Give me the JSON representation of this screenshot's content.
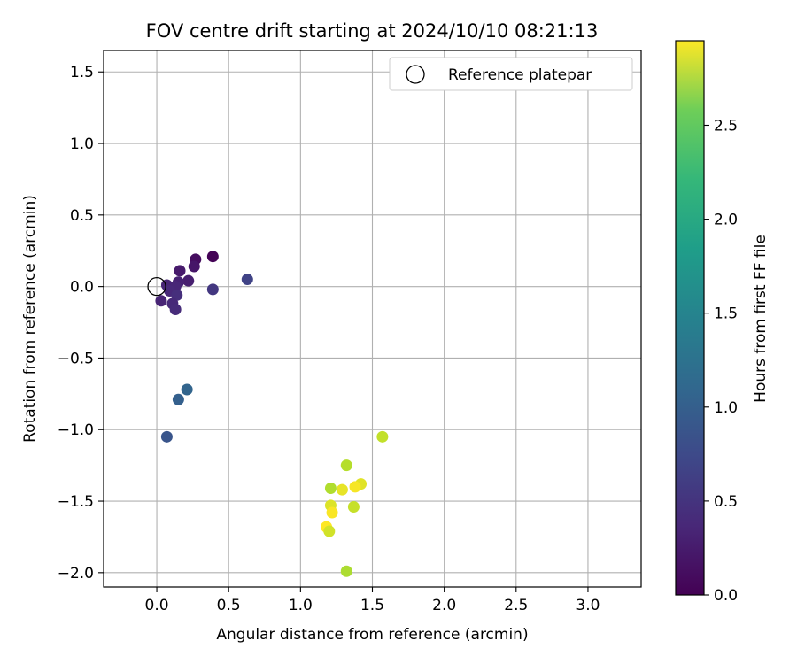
{
  "chart_data": {
    "type": "scatter",
    "title": "FOV centre drift starting at 2024/10/10 08:21:13",
    "xlabel": "Angular distance from reference (arcmin)",
    "ylabel": "Rotation from reference (arcmin)",
    "xlim": [
      -0.37,
      3.37
    ],
    "ylim": [
      -2.1,
      1.65
    ],
    "xticks": [
      0.0,
      0.5,
      1.0,
      1.5,
      2.0,
      2.5,
      3.0
    ],
    "xtick_labels": [
      "0.0",
      "0.5",
      "1.0",
      "1.5",
      "2.0",
      "2.5",
      "3.0"
    ],
    "yticks": [
      1.5,
      1.0,
      0.5,
      0.0,
      -0.5,
      -1.0,
      -1.5,
      -2.0
    ],
    "ytick_labels": [
      "1.5",
      "1.0",
      "0.5",
      "0.0",
      "−0.5",
      "−1.0",
      "−1.5",
      "−2.0"
    ],
    "grid": true,
    "legend": {
      "position": "top-right",
      "entries": [
        "Reference platepar"
      ]
    },
    "reference_point": {
      "x": 0.0,
      "y": 0.0
    },
    "colorbar": {
      "label": "Hours from first FF file",
      "colormap": "viridis",
      "range": [
        0.0,
        2.95
      ],
      "ticks": [
        0.0,
        0.5,
        1.0,
        1.5,
        2.0,
        2.5
      ],
      "tick_labels": [
        "0.0",
        "0.5",
        "1.0",
        "1.5",
        "2.0",
        "2.5"
      ]
    },
    "points": [
      {
        "x": 0.39,
        "y": 0.21,
        "t": 0.02
      },
      {
        "x": 0.27,
        "y": 0.19,
        "t": 0.1
      },
      {
        "x": 0.26,
        "y": 0.14,
        "t": 0.18
      },
      {
        "x": 0.16,
        "y": 0.11,
        "t": 0.22
      },
      {
        "x": 0.22,
        "y": 0.04,
        "t": 0.25
      },
      {
        "x": 0.15,
        "y": 0.03,
        "t": 0.28
      },
      {
        "x": 0.07,
        "y": 0.01,
        "t": 0.3
      },
      {
        "x": 0.13,
        "y": 0.0,
        "t": 0.32
      },
      {
        "x": 0.09,
        "y": -0.03,
        "t": 0.34
      },
      {
        "x": 0.14,
        "y": -0.06,
        "t": 0.4
      },
      {
        "x": 0.03,
        "y": -0.1,
        "t": 0.3
      },
      {
        "x": 0.11,
        "y": -0.12,
        "t": 0.35
      },
      {
        "x": 0.13,
        "y": -0.16,
        "t": 0.37
      },
      {
        "x": 0.39,
        "y": -0.02,
        "t": 0.48
      },
      {
        "x": 0.63,
        "y": 0.05,
        "t": 0.6
      },
      {
        "x": 0.21,
        "y": -0.72,
        "t": 0.95
      },
      {
        "x": 0.15,
        "y": -0.79,
        "t": 0.9
      },
      {
        "x": 0.07,
        "y": -1.05,
        "t": 0.78
      },
      {
        "x": 1.57,
        "y": -1.05,
        "t": 2.68
      },
      {
        "x": 1.32,
        "y": -1.25,
        "t": 2.62
      },
      {
        "x": 1.42,
        "y": -1.38,
        "t": 2.82
      },
      {
        "x": 1.38,
        "y": -1.4,
        "t": 2.92
      },
      {
        "x": 1.29,
        "y": -1.42,
        "t": 2.85
      },
      {
        "x": 1.21,
        "y": -1.41,
        "t": 2.6
      },
      {
        "x": 1.21,
        "y": -1.53,
        "t": 2.8
      },
      {
        "x": 1.37,
        "y": -1.54,
        "t": 2.7
      },
      {
        "x": 1.22,
        "y": -1.58,
        "t": 2.93
      },
      {
        "x": 1.18,
        "y": -1.68,
        "t": 2.95
      },
      {
        "x": 1.2,
        "y": -1.71,
        "t": 2.75
      },
      {
        "x": 1.32,
        "y": -1.99,
        "t": 2.58
      }
    ]
  }
}
